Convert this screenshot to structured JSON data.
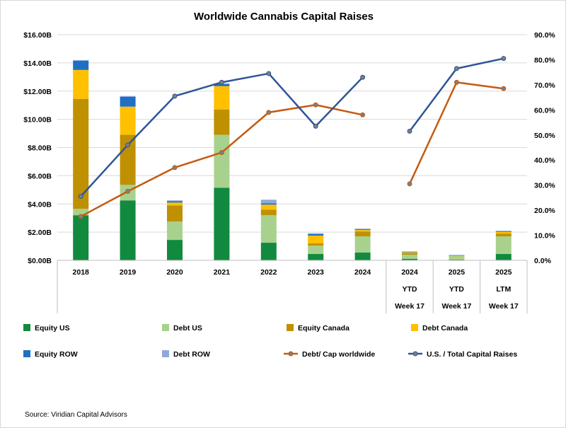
{
  "chart_data": {
    "type": "bar",
    "title": "Worldwide Cannabis Capital Raises",
    "categories": [
      [
        "2018"
      ],
      [
        "2019"
      ],
      [
        "2020"
      ],
      [
        "2021"
      ],
      [
        "2022"
      ],
      [
        "2023"
      ],
      [
        "2024"
      ],
      [
        "2024",
        "YTD",
        "Week 17"
      ],
      [
        "2025",
        "YTD",
        "Week 17"
      ],
      [
        "2025",
        "LTM",
        "Week 17"
      ]
    ],
    "y_left": {
      "min": 0,
      "max": 16,
      "step": 2,
      "tick_labels": [
        "$0.00B",
        "$2.00B",
        "$4.00B",
        "$6.00B",
        "$8.00B",
        "$10.00B",
        "$12.00B",
        "$14.00B",
        "$16.00B"
      ]
    },
    "y_right": {
      "min": 0,
      "max": 90,
      "step": 10,
      "tick_labels": [
        "0.0%",
        "10.0%",
        "20.0%",
        "30.0%",
        "40.0%",
        "50.0%",
        "60.0%",
        "70.0%",
        "80.0%",
        "90.0%"
      ]
    },
    "grid": true,
    "legend_position": "bottom",
    "bar_series": [
      {
        "name": "Equity US",
        "color": "#118a3f",
        "values": [
          3.2,
          4.25,
          1.45,
          5.15,
          1.25,
          0.45,
          0.55,
          0.1,
          0.05,
          0.45
        ]
      },
      {
        "name": "Debt US",
        "color": "#a9d18e",
        "values": [
          0.45,
          1.1,
          1.3,
          3.75,
          1.95,
          0.6,
          1.15,
          0.3,
          0.25,
          1.25
        ]
      },
      {
        "name": "Equity Canada",
        "color": "#bf9000",
        "values": [
          7.8,
          3.55,
          1.15,
          1.8,
          0.4,
          0.15,
          0.35,
          0.1,
          0.03,
          0.2
        ]
      },
      {
        "name": "Debt Canada",
        "color": "#ffc000",
        "values": [
          2.05,
          2.0,
          0.2,
          1.65,
          0.35,
          0.55,
          0.1,
          0.07,
          0.02,
          0.12
        ]
      },
      {
        "name": "Equity ROW",
        "color": "#1f6fc5",
        "values": [
          0.65,
          0.7,
          0.1,
          0.15,
          0.1,
          0.12,
          0.05,
          0.04,
          0.02,
          0.05
        ]
      },
      {
        "name": "Debt ROW",
        "color": "#8eaadb",
        "values": [
          0.05,
          0.05,
          0.05,
          0.05,
          0.25,
          0.05,
          0.05,
          0.02,
          0.01,
          0.03
        ]
      }
    ],
    "line_series": [
      {
        "name": "Debt/ Cap worldwide",
        "color": "#c55a11",
        "values": [
          17.5,
          27.5,
          37.0,
          43.0,
          59.0,
          62.0,
          58.0,
          30.5,
          71.0,
          68.5
        ]
      },
      {
        "name": "U.S. / Total Capital Raises",
        "color": "#2f5597",
        "values": [
          25.5,
          46.0,
          65.5,
          71.0,
          74.5,
          53.5,
          73.0,
          51.5,
          76.5,
          80.5
        ]
      }
    ],
    "line_break_after_index": 6
  },
  "source": "Source: Viridian Capital Advisors"
}
